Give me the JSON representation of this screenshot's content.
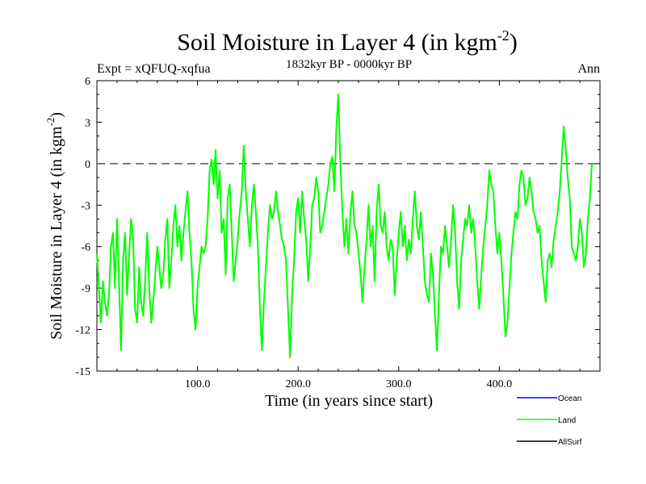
{
  "chart_data": {
    "type": "line",
    "title": "Soil Moisture in Layer 4 (in kgm",
    "title_exp": "-2",
    "title_close": ")",
    "subtitle_left": "Expt = xQFUQ-xqfua",
    "subtitle_center": "1832kyr BP - 0000kyr BP",
    "subtitle_right": "Ann",
    "xlabel": "Time (in years since start)",
    "ylabel": "Soil Moisture in Layer 4 (in kgm",
    "ylabel_exp": "-2",
    "ylabel_close": ")",
    "xlim": [
      0,
      500
    ],
    "ylim": [
      -15,
      6
    ],
    "xticks": [
      100,
      200,
      300,
      400
    ],
    "xtick_labels": [
      "100.0",
      "200.0",
      "300.0",
      "400.0"
    ],
    "yticks": [
      6,
      3,
      0,
      -3,
      -6,
      -9,
      -12,
      -15
    ],
    "ytick_labels": [
      "6",
      "3",
      "0",
      "-3",
      "-6",
      "-9",
      "-12",
      "-15"
    ],
    "zero_line": 0,
    "legend": [
      {
        "label": "Ocean",
        "color": "#0000ff"
      },
      {
        "label": "Land",
        "color": "#00ff00"
      },
      {
        "label": "AllSurf",
        "color": "#000000"
      }
    ],
    "series": [
      {
        "name": "Land",
        "color": "#00ff00",
        "x_start": 0,
        "x_step": 2,
        "values": [
          -6.5,
          -9,
          -11.5,
          -8.5,
          -10,
          -11,
          -9.5,
          -6,
          -5,
          -9,
          -4,
          -8.5,
          -13.5,
          -7,
          -5,
          -9.5,
          -6.5,
          -4,
          -5.5,
          -10.5,
          -11.5,
          -7.5,
          -10,
          -11,
          -8.5,
          -5,
          -9,
          -11.5,
          -10,
          -8,
          -6,
          -7.5,
          -9,
          -8,
          -5.5,
          -4,
          -9,
          -7,
          -4.5,
          -3,
          -6,
          -4.5,
          -7,
          -5,
          -3.5,
          -2,
          -5,
          -7,
          -10.5,
          -12,
          -9,
          -7.5,
          -6,
          -6.5,
          -6,
          -4,
          -0.5,
          0.3,
          -1.5,
          1,
          -2.5,
          -0.5,
          -5,
          -4,
          -8,
          -2.5,
          -1.5,
          -5,
          -8.5,
          -7,
          -5.5,
          -3.5,
          -2,
          1.3,
          -2,
          -4,
          -6,
          -3,
          -1.5,
          -3.5,
          -6,
          -10.5,
          -13.5,
          -10,
          -7.5,
          -5,
          -3,
          -4,
          -3.5,
          -2,
          -3.5,
          -4.5,
          -5.5,
          -6,
          -7,
          -10.5,
          -14,
          -9.5,
          -7,
          -3.5,
          -2.5,
          -5,
          -2,
          -4,
          -5.5,
          -8.5,
          -6,
          -3,
          -2.5,
          -1,
          -2,
          -5,
          -4.5,
          -3.5,
          -2.5,
          -1.5,
          0,
          0.5,
          -2,
          2.5,
          5,
          0,
          -3.5,
          -6,
          -4,
          -6.5,
          -3.5,
          -2,
          -4.5,
          -5,
          -6.5,
          -8,
          -10,
          -7.5,
          -5.5,
          -3,
          -6,
          -4.5,
          -8.5,
          -3.5,
          -1.5,
          -4.5,
          -5,
          -3.5,
          -6,
          -7,
          -5.5,
          -6,
          -9.5,
          -7,
          -5,
          -3.5,
          -6,
          -4.5,
          -7,
          -5.5,
          -6.5,
          -4,
          -2,
          -4.5,
          -5.5,
          -3.5,
          -6,
          -8.5,
          -9.5,
          -10,
          -6.5,
          -8,
          -11,
          -13.5,
          -9.5,
          -6,
          -6.5,
          -4.5,
          -6,
          -7.5,
          -5.5,
          -3,
          -5,
          -8.5,
          -10.5,
          -7,
          -5.5,
          -4,
          -4.5,
          -3,
          -5,
          -4,
          -6,
          -8.5,
          -10.5,
          -8,
          -6,
          -4.5,
          -3,
          -0.5,
          -1.5,
          -2,
          -4.5,
          -6.5,
          -5,
          -7,
          -9.5,
          -12.5,
          -11.5,
          -9,
          -6.5,
          -5,
          -3.5,
          -4,
          -1.5,
          -0.5,
          -1,
          -3,
          -2.5,
          -1,
          -2,
          -3.5,
          -4,
          -5,
          -4.5,
          -7,
          -8.5,
          -10,
          -7,
          -6.5,
          -7.5,
          -5.5,
          -4.5,
          -3.5,
          -2,
          0.3,
          2.7,
          1,
          -1,
          -2.5,
          -6,
          -6.5,
          -7,
          -6,
          -4,
          -5,
          -7.5,
          -6.5,
          -4,
          -2.5,
          0
        ]
      }
    ]
  }
}
